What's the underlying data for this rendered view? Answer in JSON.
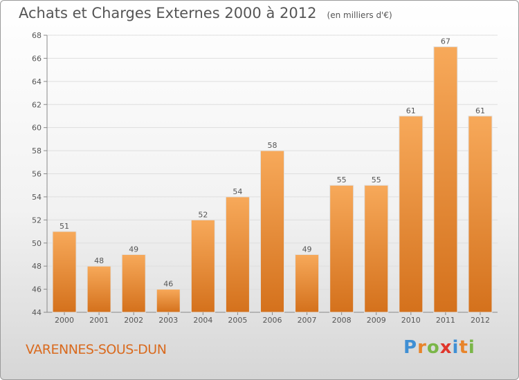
{
  "title": "Achats et Charges Externes 2000 à 2012",
  "unit_note": "(en milliers d'€)",
  "town": "VARENNES-SOUS-DUN",
  "logo": {
    "letters": [
      "P",
      "r",
      "o",
      "x",
      "i",
      "t",
      "i"
    ],
    "colors": [
      "#3f8fd4",
      "#e8842a",
      "#7ab648",
      "#e0362c",
      "#3f8fd4",
      "#e8842a",
      "#7ab648"
    ]
  },
  "colors": {
    "bar_top": "#f7a95a",
    "bar_bottom": "#d4711c",
    "text": "#555555",
    "town": "#d96a1e"
  },
  "chart_data": {
    "type": "bar",
    "categories": [
      "2000",
      "2001",
      "2002",
      "2003",
      "2004",
      "2005",
      "2006",
      "2007",
      "2008",
      "2009",
      "2010",
      "2011",
      "2012"
    ],
    "values": [
      51,
      48,
      49,
      46,
      52,
      54,
      58,
      49,
      55,
      55,
      61,
      67,
      61
    ],
    "ylim": [
      44,
      68
    ],
    "yticks": [
      44,
      46,
      48,
      50,
      52,
      54,
      56,
      58,
      60,
      62,
      64,
      66,
      68
    ],
    "grid": true
  }
}
